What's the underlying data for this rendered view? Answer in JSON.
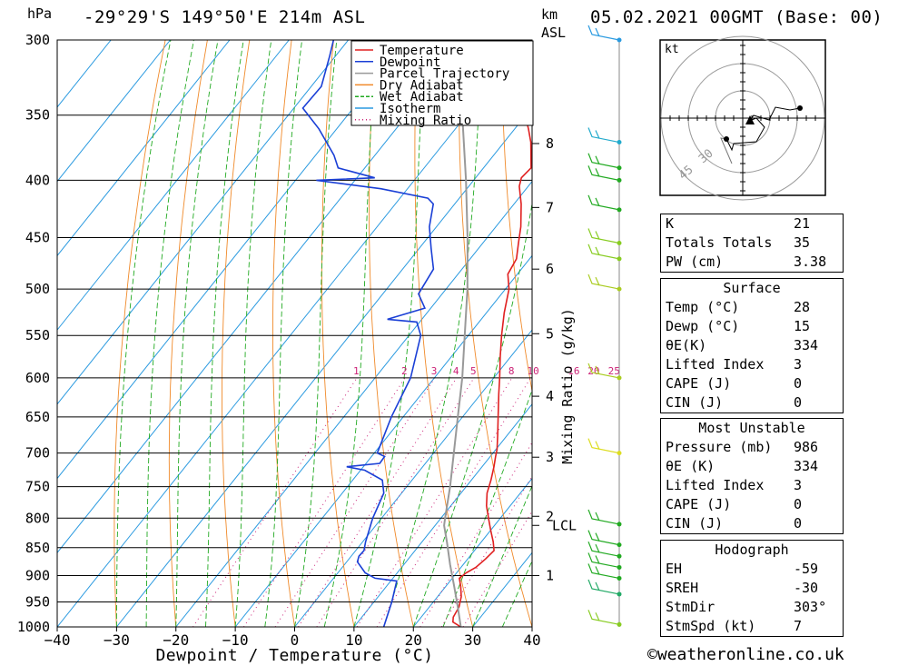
{
  "header": {
    "location": "-29°29'S 149°50'E 214m ASL",
    "datetime": "05.02.2021 00GMT (Base: 00)",
    "hpa_unit": "hPa",
    "km_unit": "km",
    "asl_unit": "ASL"
  },
  "chart_data": {
    "type": "line",
    "title": "-29°29'S 149°50'E 214m ASL",
    "xlabel": "Dewpoint / Temperature (°C)",
    "ylabel": "hPa",
    "y2label": "Mixing Ratio (g/kg)",
    "xlim": [
      -40,
      40
    ],
    "ylim": [
      1000,
      300
    ],
    "x_ticks": [
      -40,
      -30,
      -20,
      -10,
      0,
      10,
      20,
      30,
      40
    ],
    "pressure_ticks": [
      300,
      350,
      400,
      450,
      500,
      550,
      600,
      650,
      700,
      750,
      800,
      850,
      900,
      950,
      1000
    ],
    "km_ticks": [
      {
        "km": "1",
        "p": 900
      },
      {
        "km": "2",
        "p": 797
      },
      {
        "km": "3",
        "p": 706
      },
      {
        "km": "4",
        "p": 623
      },
      {
        "km": "5",
        "p": 548
      },
      {
        "km": "6",
        "p": 480
      },
      {
        "km": "7",
        "p": 423
      },
      {
        "km": "8",
        "p": 371
      }
    ],
    "lcl": {
      "label": "LCL",
      "p": 812
    },
    "mixing_ratio_labels": [
      "1",
      "2",
      "3",
      "4",
      "5",
      "8",
      "10",
      "16",
      "20",
      "25"
    ],
    "legend": {
      "placement": "top",
      "entries": [
        {
          "name": "Temperature",
          "color": "#e02020"
        },
        {
          "name": "Dewpoint",
          "color": "#1a3fd6"
        },
        {
          "name": "Parcel Trajectory",
          "color": "#999999"
        },
        {
          "name": "Dry Adiabat",
          "color": "#f08a2a"
        },
        {
          "name": "Wet Adiabat",
          "color": "#22aa22"
        },
        {
          "name": "Isotherm",
          "color": "#2a9ae0"
        },
        {
          "name": "Mixing Ratio",
          "color": "#cc2277"
        }
      ]
    },
    "series": [
      {
        "name": "Temperature",
        "color": "#e02020",
        "points": [
          [
            1000,
            28
          ],
          [
            990,
            26
          ],
          [
            980,
            25.4
          ],
          [
            960,
            25
          ],
          [
            940,
            24
          ],
          [
            920,
            22.5
          ],
          [
            905,
            21.2
          ],
          [
            895,
            21.6
          ],
          [
            885,
            22.5
          ],
          [
            870,
            23
          ],
          [
            855,
            23.3
          ],
          [
            840,
            22
          ],
          [
            820,
            20
          ],
          [
            800,
            18
          ],
          [
            780,
            16
          ],
          [
            760,
            14.4
          ],
          [
            740,
            13.3
          ],
          [
            720,
            12
          ],
          [
            705,
            10.9
          ],
          [
            695,
            10.2
          ],
          [
            675,
            8.4
          ],
          [
            650,
            6
          ],
          [
            620,
            3
          ],
          [
            600,
            1
          ],
          [
            575,
            -1.7
          ],
          [
            550,
            -4.4
          ],
          [
            525,
            -7
          ],
          [
            500,
            -9.4
          ],
          [
            485,
            -11.6
          ],
          [
            470,
            -12.2
          ],
          [
            455,
            -14
          ],
          [
            440,
            -15.8
          ],
          [
            420,
            -18.8
          ],
          [
            405,
            -21.5
          ],
          [
            398,
            -22.3
          ],
          [
            390,
            -22
          ],
          [
            370,
            -25.5
          ],
          [
            360,
            -27.7
          ],
          [
            355,
            -28.9
          ],
          [
            340,
            -30.5
          ],
          [
            320,
            -34
          ],
          [
            305,
            -37.3
          ],
          [
            300,
            -38
          ]
        ]
      },
      {
        "name": "Dewpoint",
        "color": "#1a3fd6",
        "points": [
          [
            1000,
            15
          ],
          [
            950,
            13
          ],
          [
            910,
            11
          ],
          [
            905,
            7
          ],
          [
            895,
            4.6
          ],
          [
            875,
            1.8
          ],
          [
            865,
            1.3
          ],
          [
            855,
            1.4
          ],
          [
            840,
            0.5
          ],
          [
            800,
            -1.5
          ],
          [
            760,
            -3
          ],
          [
            740,
            -5
          ],
          [
            725,
            -9.3
          ],
          [
            720,
            -12.8
          ],
          [
            715,
            -7.7
          ],
          [
            705,
            -7.8
          ],
          [
            700,
            -9.5
          ],
          [
            650,
            -12
          ],
          [
            600,
            -14
          ],
          [
            550,
            -18
          ],
          [
            535,
            -20.5
          ],
          [
            532,
            -25.8
          ],
          [
            520,
            -21
          ],
          [
            505,
            -24
          ],
          [
            480,
            -24.8
          ],
          [
            460,
            -28
          ],
          [
            440,
            -31.2
          ],
          [
            420,
            -33.6
          ],
          [
            415,
            -35.3
          ],
          [
            407,
            -44.5
          ],
          [
            400,
            -56.5
          ],
          [
            398,
            -47
          ],
          [
            390,
            -54.5
          ],
          [
            380,
            -56.9
          ],
          [
            360,
            -63
          ],
          [
            345,
            -68.5
          ],
          [
            330,
            -68.3
          ],
          [
            310,
            -71
          ],
          [
            300,
            -72.5
          ]
        ]
      },
      {
        "name": "Parcel Trajectory",
        "color": "#999999",
        "points": [
          [
            1000,
            28
          ],
          [
            960,
            24.8
          ],
          [
            920,
            21.4
          ],
          [
            880,
            17.8
          ],
          [
            840,
            14.2
          ],
          [
            812,
            11.5
          ],
          [
            800,
            10.7
          ],
          [
            750,
            7.3
          ],
          [
            700,
            3.4
          ],
          [
            650,
            -0.8
          ],
          [
            600,
            -5.3
          ],
          [
            550,
            -10.6
          ],
          [
            500,
            -16.4
          ],
          [
            450,
            -23.3
          ],
          [
            400,
            -31.3
          ],
          [
            350,
            -40.7
          ],
          [
            300,
            -51.5
          ]
        ]
      }
    ],
    "hodograph": {
      "unit_label": "kt",
      "ring_labels": [
        "30",
        "45"
      ]
    },
    "wind_barbs": [
      {
        "p": 300,
        "color": "#2a9ae0"
      },
      {
        "p": 370,
        "color": "#22aacc"
      },
      {
        "p": 390,
        "color": "#22aa22"
      },
      {
        "p": 400,
        "color": "#22aa22"
      },
      {
        "p": 425,
        "color": "#22aa22"
      },
      {
        "p": 455,
        "color": "#88cc22"
      },
      {
        "p": 470,
        "color": "#88cc22"
      },
      {
        "p": 500,
        "color": "#aacc22"
      },
      {
        "p": 600,
        "color": "#aacc22"
      },
      {
        "p": 700,
        "color": "#dddd22"
      },
      {
        "p": 810,
        "color": "#22aa22"
      },
      {
        "p": 845,
        "color": "#22aa22"
      },
      {
        "p": 865,
        "color": "#22aa22"
      },
      {
        "p": 885,
        "color": "#22aa22"
      },
      {
        "p": 905,
        "color": "#22aa22"
      },
      {
        "p": 935,
        "color": "#22aa66"
      },
      {
        "p": 995,
        "color": "#88cc22"
      }
    ]
  },
  "indices": {
    "rows": [
      {
        "label": "K",
        "value": "21"
      },
      {
        "label": "Totals Totals",
        "value": "35"
      },
      {
        "label": "PW (cm)",
        "value": "3.38"
      }
    ]
  },
  "surface": {
    "title": "Surface",
    "rows": [
      {
        "label": "Temp (°C)",
        "value": "28"
      },
      {
        "label": "Dewp (°C)",
        "value": "15"
      },
      {
        "label": "θE(K)",
        "value": "334"
      },
      {
        "label": "Lifted Index",
        "value": "3"
      },
      {
        "label": "CAPE (J)",
        "value": "0"
      },
      {
        "label": "CIN (J)",
        "value": "0"
      }
    ]
  },
  "most_unstable": {
    "title": "Most Unstable",
    "rows": [
      {
        "label": "Pressure (mb)",
        "value": "986"
      },
      {
        "label": "θE (K)",
        "value": "334"
      },
      {
        "label": "Lifted Index",
        "value": "3"
      },
      {
        "label": "CAPE (J)",
        "value": "0"
      },
      {
        "label": "CIN (J)",
        "value": "0"
      }
    ]
  },
  "hodograph_stats": {
    "title": "Hodograph",
    "rows": [
      {
        "label": "EH",
        "value": "-59"
      },
      {
        "label": "SREH",
        "value": "-30"
      },
      {
        "label": "StmDir",
        "value": "303°"
      },
      {
        "label": "StmSpd (kt)",
        "value": "7"
      }
    ]
  },
  "footer": {
    "copyright": "©weatheronline.co.uk"
  }
}
